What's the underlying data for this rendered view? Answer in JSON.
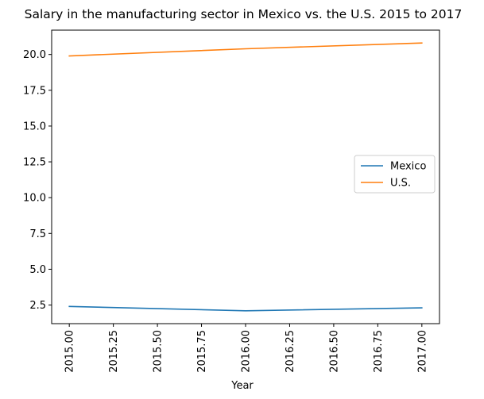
{
  "chart_data": {
    "type": "line",
    "title": "Salary in the manufacturing sector in Mexico vs. the U.S. 2015 to 2017",
    "xlabel": "Year",
    "ylabel": "",
    "x": [
      2015,
      2016,
      2017
    ],
    "xticks": [
      2015.0,
      2015.25,
      2015.5,
      2015.75,
      2016.0,
      2016.25,
      2016.5,
      2016.75,
      2017.0
    ],
    "xtick_labels": [
      "2015.00",
      "2015.25",
      "2015.50",
      "2015.75",
      "2016.00",
      "2016.25",
      "2016.50",
      "2016.75",
      "2017.00"
    ],
    "xlim": [
      2014.9,
      2017.1
    ],
    "yticks": [
      2.5,
      5.0,
      7.5,
      10.0,
      12.5,
      15.0,
      17.5,
      20.0
    ],
    "ytick_labels": [
      "2.5",
      "5.0",
      "7.5",
      "10.0",
      "12.5",
      "15.0",
      "17.5",
      "20.0"
    ],
    "ylim": [
      1.2,
      21.7
    ],
    "grid": false,
    "legend_position": "center-right",
    "series": [
      {
        "name": "Mexico",
        "values": [
          2.4,
          2.1,
          2.3
        ],
        "color": "#1f77b4"
      },
      {
        "name": "U.S.",
        "values": [
          19.9,
          20.4,
          20.8
        ],
        "color": "#ff7f0e"
      }
    ]
  }
}
